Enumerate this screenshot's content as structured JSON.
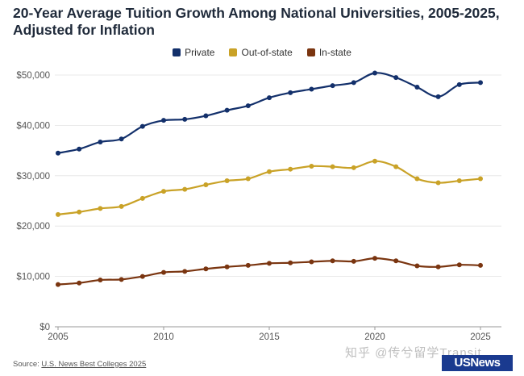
{
  "chart_data": {
    "type": "line",
    "title": "20-Year Average Tuition Growth Among National Universities, 2005-2025, Adjusted for Inflation",
    "xlabel": "",
    "ylabel": "",
    "xlim": [
      2005,
      2025
    ],
    "ylim": [
      0,
      50000
    ],
    "x_ticks": [
      2005,
      2010,
      2015,
      2020,
      2025
    ],
    "y_ticks": [
      "$0",
      "$10,000",
      "$20,000",
      "$30,000",
      "$40,000",
      "$50,000"
    ],
    "y_tick_values": [
      0,
      10000,
      20000,
      30000,
      40000,
      50000
    ],
    "grid": "horizontal",
    "legend_position": "top-center",
    "x": [
      2005,
      2006,
      2007,
      2008,
      2009,
      2010,
      2011,
      2012,
      2013,
      2014,
      2015,
      2016,
      2017,
      2018,
      2019,
      2020,
      2021,
      2022,
      2023,
      2024,
      2025
    ],
    "series": [
      {
        "name": "Private",
        "color": "#13306b",
        "values": [
          34500,
          35300,
          36700,
          37300,
          39800,
          41000,
          41200,
          41900,
          43000,
          43900,
          45500,
          46500,
          47200,
          47900,
          48500,
          50400,
          49500,
          47600,
          45700,
          48100,
          48500
        ]
      },
      {
        "name": "Out-of-state",
        "color": "#c9a227",
        "values": [
          22300,
          22800,
          23500,
          23900,
          25500,
          26900,
          27300,
          28200,
          29000,
          29400,
          30800,
          31300,
          31900,
          31800,
          31600,
          32900,
          31800,
          29400,
          28600,
          29000,
          29400
        ]
      },
      {
        "name": "In-state",
        "color": "#7a3510",
        "values": [
          8400,
          8700,
          9300,
          9400,
          10000,
          10800,
          11000,
          11500,
          11900,
          12200,
          12600,
          12700,
          12900,
          13100,
          13000,
          13600,
          13100,
          12100,
          11900,
          12300,
          12200
        ]
      }
    ]
  },
  "source": {
    "prefix": "Source: ",
    "name": "U.S. News Best Colleges 2025"
  },
  "watermark": "知乎 @传兮留学Transit",
  "logo": "USNews"
}
